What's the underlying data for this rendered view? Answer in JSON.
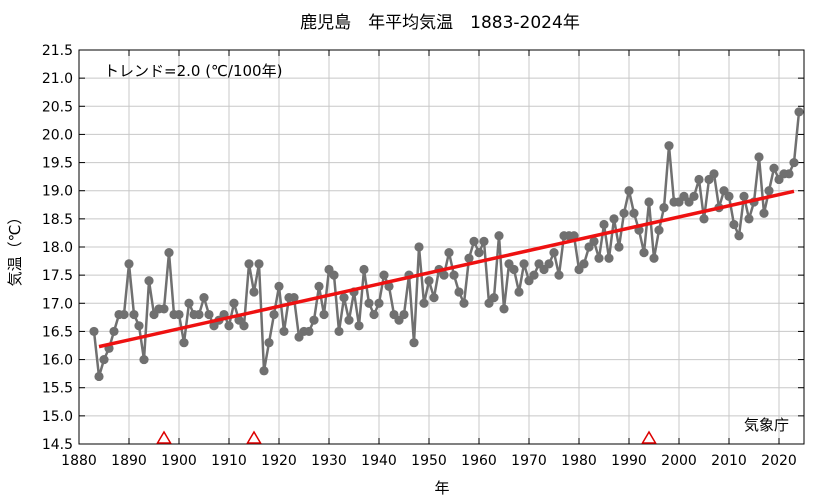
{
  "chart_data": {
    "type": "line",
    "title": "鹿児島　年平均気温　1883-2024年",
    "xlabel": "年",
    "ylabel": "気温（℃）",
    "trend_text": "トレンド=2.0 (℃/100年)",
    "source_text": "気象庁",
    "xlim": [
      1880,
      2025
    ],
    "ylim": [
      14.5,
      21.5
    ],
    "x_ticks": [
      1880,
      1890,
      1900,
      1910,
      1920,
      1930,
      1940,
      1950,
      1960,
      1970,
      1980,
      1990,
      2000,
      2010,
      2020
    ],
    "y_ticks": [
      "14.5",
      "15.0",
      "15.5",
      "16.0",
      "16.5",
      "17.0",
      "17.5",
      "18.0",
      "18.5",
      "19.0",
      "19.5",
      "20.0",
      "20.5",
      "21.0",
      "21.5"
    ],
    "grid": true,
    "colors": {
      "series": "#707070",
      "trend": "#ee1111",
      "marker": "#dd0000",
      "grid": "#c8c8c8"
    },
    "series": [
      {
        "x": [
          1883,
          1884,
          1885,
          1886,
          1887,
          1888,
          1889,
          1890,
          1891,
          1892,
          1893,
          1894,
          1895,
          1896,
          1897,
          1898,
          1899,
          1900,
          1901,
          1902,
          1903,
          1904,
          1905,
          1906,
          1907,
          1908,
          1909,
          1910,
          1911,
          1912,
          1913,
          1914,
          1915,
          1916,
          1917,
          1918,
          1919,
          1920,
          1921,
          1922,
          1923,
          1924,
          1925,
          1926,
          1927,
          1928,
          1929,
          1930,
          1931,
          1932,
          1933,
          1934,
          1935,
          1936,
          1937,
          1938,
          1939,
          1940,
          1941,
          1942,
          1943,
          1944,
          1945,
          1946,
          1947,
          1948,
          1949,
          1950,
          1951,
          1952,
          1953,
          1954,
          1955,
          1956,
          1957,
          1958,
          1959,
          1960,
          1961,
          1962,
          1963,
          1964,
          1965,
          1966,
          1967,
          1968,
          1969,
          1970,
          1971,
          1972,
          1973,
          1974,
          1975,
          1976,
          1977,
          1978,
          1979,
          1980,
          1981,
          1982,
          1983,
          1984,
          1985,
          1986,
          1987,
          1988,
          1989,
          1990,
          1991,
          1992,
          1993,
          1994,
          1995,
          1996,
          1997,
          1998,
          1999,
          2000,
          2001,
          2002,
          2003,
          2004,
          2005,
          2006,
          2007,
          2008,
          2009,
          2010,
          2011,
          2012,
          2013,
          2014,
          2015,
          2016,
          2017,
          2018,
          2019,
          2020,
          2021,
          2022,
          2023,
          2024
        ],
        "values": [
          16.5,
          15.7,
          16.0,
          16.2,
          16.5,
          16.8,
          16.8,
          17.7,
          16.8,
          16.6,
          16.0,
          17.4,
          16.8,
          16.9,
          16.9,
          17.9,
          16.8,
          16.8,
          16.3,
          17.0,
          16.8,
          16.8,
          17.1,
          16.8,
          16.6,
          16.7,
          16.8,
          16.6,
          17.0,
          16.7,
          16.6,
          17.7,
          17.2,
          17.7,
          15.8,
          16.3,
          16.8,
          17.3,
          16.5,
          17.1,
          17.1,
          16.4,
          16.5,
          16.5,
          16.7,
          17.3,
          16.8,
          17.6,
          17.5,
          16.5,
          17.1,
          16.7,
          17.2,
          16.6,
          17.6,
          17.0,
          16.8,
          17.0,
          17.5,
          17.3,
          16.8,
          16.7,
          16.8,
          17.5,
          16.3,
          18.0,
          17.0,
          17.4,
          17.1,
          17.6,
          17.5,
          17.9,
          17.5,
          17.2,
          17.0,
          17.8,
          18.1,
          17.9,
          18.1,
          17.0,
          17.1,
          18.2,
          16.9,
          17.7,
          17.6,
          17.2,
          17.7,
          17.4,
          17.5,
          17.7,
          17.6,
          17.7,
          17.9,
          17.5,
          18.2,
          18.2,
          18.2,
          17.6,
          17.7,
          18.0,
          18.1,
          17.8,
          18.4,
          17.8,
          18.5,
          18.0,
          18.6,
          19.0,
          18.6,
          18.3,
          17.9,
          18.8,
          17.8,
          18.3,
          18.7,
          19.8,
          18.8,
          18.8,
          18.9,
          18.8,
          18.9,
          19.2,
          18.5,
          19.2,
          19.3,
          18.7,
          19.0,
          18.9,
          18.4,
          18.2,
          18.9,
          18.5,
          18.8,
          19.6,
          18.6,
          19.0,
          19.4,
          19.2,
          19.3,
          19.3,
          19.5,
          20.4
        ]
      }
    ],
    "trend_line": {
      "x": [
        1884,
        2023
      ],
      "y": [
        16.23,
        18.99
      ]
    },
    "markers": {
      "symbol": "triangle",
      "x": [
        1897,
        1915,
        1994
      ]
    }
  }
}
